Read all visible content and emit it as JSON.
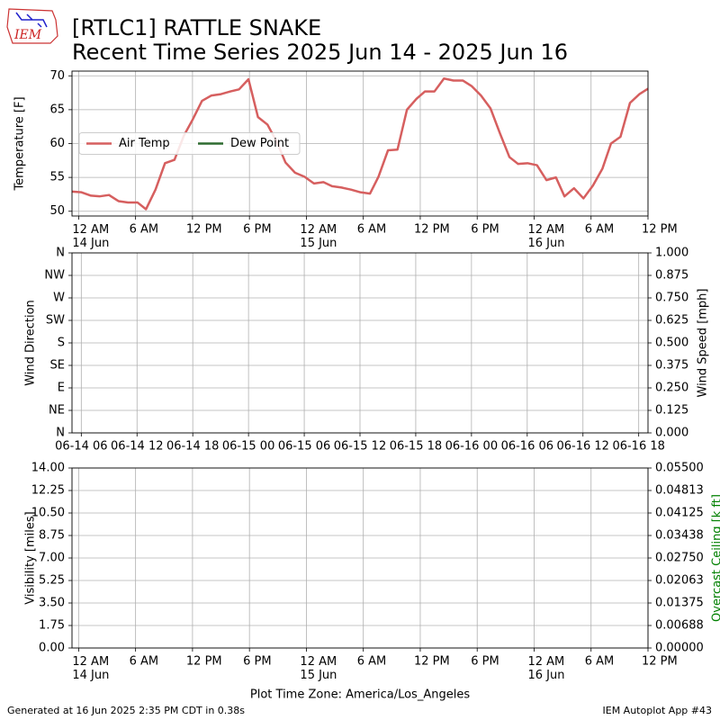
{
  "header": {
    "title": "[RTLC1] RATTLE SNAKE",
    "subtitle": "Recent Time Series 2025 Jun 14 - 2025 Jun 16",
    "logo": "IEM"
  },
  "footer": {
    "x_label": "Plot Time Zone: America/Los_Angeles",
    "generated": "Generated at 16 Jun 2025 2:35 PM CDT in 0.38s",
    "app": "IEM Autoplot App #43"
  },
  "chart_data": [
    {
      "type": "line",
      "y_label": "Temperature [F]",
      "x": [
        -0.7,
        0.3,
        1.3,
        2.2,
        3.2,
        4.2,
        5.2,
        6.2,
        7.1,
        8.1,
        9.1,
        10.1,
        11.1,
        12.0,
        13.0,
        14.0,
        15.0,
        16.0,
        16.9,
        17.9,
        18.9,
        19.9,
        20.9,
        21.8,
        22.8,
        23.8,
        24.8,
        25.8,
        26.7,
        27.7,
        28.7,
        29.7,
        30.7,
        31.6,
        32.6,
        33.6,
        34.6,
        35.6,
        36.5,
        37.5,
        38.5,
        39.5,
        40.5,
        41.4,
        42.4,
        43.4,
        44.4,
        45.4,
        46.3,
        47.3,
        48.3,
        49.3,
        50.3,
        51.2,
        52.2,
        53.2,
        54.2,
        55.2,
        56.1,
        57.1,
        58.1,
        59.1,
        60.0
      ],
      "series": [
        {
          "name": "Air Temp",
          "color": "#d65f5f",
          "values": [
            52.9,
            52.8,
            52.3,
            52.2,
            52.4,
            51.5,
            51.3,
            51.3,
            50.3,
            53.2,
            57.1,
            57.6,
            61.2,
            63.5,
            66.3,
            67.1,
            67.3,
            67.7,
            68.0,
            69.5,
            63.9,
            62.8,
            60.2,
            57.2,
            55.7,
            55.1,
            54.1,
            54.3,
            53.7,
            53.5,
            53.2,
            52.8,
            52.6,
            55.1,
            59.0,
            59.1,
            65.0,
            66.6,
            67.7,
            67.7,
            69.6,
            69.3,
            69.3,
            68.5,
            67.1,
            65.2,
            61.5,
            58.0,
            57.0,
            57.1,
            56.8,
            54.6,
            55.0,
            52.2,
            53.4,
            51.9,
            53.8,
            56.3,
            60.0,
            61.0,
            66.0,
            67.3,
            68.1
          ]
        },
        {
          "name": "Dew Point",
          "color": "#2e6b30",
          "values": [
            null,
            null,
            null,
            null,
            null,
            null,
            null,
            null,
            null,
            null,
            null,
            null,
            null,
            null,
            null,
            null,
            null,
            null,
            null,
            null,
            null,
            null,
            null,
            null,
            null,
            null,
            null,
            null,
            null,
            null,
            null,
            null,
            null,
            null,
            null,
            null,
            null,
            null,
            null,
            null,
            null,
            null,
            null,
            null,
            null,
            null,
            null,
            null,
            null,
            null,
            null,
            null,
            null,
            null,
            null,
            null,
            null,
            null,
            null,
            null,
            null,
            null,
            null
          ]
        }
      ],
      "xlim": [
        -0.7,
        60
      ],
      "xticks": [
        {
          "value": 0,
          "label": "12 AM\n14 Jun"
        },
        {
          "value": 6,
          "label": "6 AM"
        },
        {
          "value": 12,
          "label": "12 PM"
        },
        {
          "value": 18,
          "label": "6 PM"
        },
        {
          "value": 24,
          "label": "12 AM\n15 Jun"
        },
        {
          "value": 30,
          "label": "6 AM"
        },
        {
          "value": 36,
          "label": "12 PM"
        },
        {
          "value": 42,
          "label": "6 PM"
        },
        {
          "value": 48,
          "label": "12 AM\n16 Jun"
        },
        {
          "value": 54,
          "label": "6 AM"
        },
        {
          "value": 60,
          "label": "12 PM"
        }
      ],
      "ylim": [
        49.3,
        70.7
      ],
      "yticks": [
        50,
        55,
        60,
        65,
        70
      ],
      "grid": true,
      "legend": "center left"
    },
    {
      "type": "line",
      "y_label": "Wind Direction",
      "y2_label": "Wind Speed [mph]",
      "xlim": [
        5,
        67
      ],
      "xticks": [
        {
          "value": 6,
          "label": "06-14 06"
        },
        {
          "value": 12,
          "label": "06-14 12"
        },
        {
          "value": 18,
          "label": "06-14 18"
        },
        {
          "value": 24,
          "label": "06-15 00"
        },
        {
          "value": 30,
          "label": "06-15 06"
        },
        {
          "value": 36,
          "label": "06-15 12"
        },
        {
          "value": 42,
          "label": "06-15 18"
        },
        {
          "value": 48,
          "label": "06-16 00"
        },
        {
          "value": 54,
          "label": "06-16 06"
        },
        {
          "value": 60,
          "label": "06-16 12"
        },
        {
          "value": 66,
          "label": "06-16 18"
        }
      ],
      "ylim": [
        0,
        360
      ],
      "yticks": [
        {
          "value": 0,
          "label": "N"
        },
        {
          "value": 45,
          "label": "NE"
        },
        {
          "value": 90,
          "label": "E"
        },
        {
          "value": 135,
          "label": "SE"
        },
        {
          "value": 180,
          "label": "S"
        },
        {
          "value": 225,
          "label": "SW"
        },
        {
          "value": 270,
          "label": "W"
        },
        {
          "value": 315,
          "label": "NW"
        },
        {
          "value": 360,
          "label": "N"
        }
      ],
      "y2lim": [
        0,
        1
      ],
      "y2ticks": [
        {
          "value": 0,
          "label": "0.000"
        },
        0.125,
        {
          "value": 0.25,
          "label": "0.250"
        },
        0.375,
        {
          "value": 0.5,
          "label": "0.500"
        },
        0.625,
        {
          "value": 0.75,
          "label": "0.750"
        },
        0.875,
        {
          "value": 1,
          "label": "1.000"
        }
      ],
      "grid": true
    },
    {
      "type": "line",
      "y_label": "Visibility [miles]",
      "y2_label": "Overcast Ceiling [k ft]",
      "y2_label_color": "#008000",
      "xlim": [
        -0.7,
        60
      ],
      "xticks": [
        {
          "value": 0,
          "label": "12 AM\n14 Jun"
        },
        {
          "value": 6,
          "label": "6 AM"
        },
        {
          "value": 12,
          "label": "12 PM"
        },
        {
          "value": 18,
          "label": "6 PM"
        },
        {
          "value": 24,
          "label": "12 AM\n15 Jun"
        },
        {
          "value": 30,
          "label": "6 AM"
        },
        {
          "value": 36,
          "label": "12 PM"
        },
        {
          "value": 42,
          "label": "6 PM"
        },
        {
          "value": 48,
          "label": "12 AM\n16 Jun"
        },
        {
          "value": 54,
          "label": "6 AM"
        },
        {
          "value": 60,
          "label": "12 PM"
        }
      ],
      "ylim": [
        0,
        14
      ],
      "yticks": [
        {
          "value": 0,
          "label": "0.00"
        },
        1.75,
        {
          "value": 3.5,
          "label": "3.50"
        },
        5.25,
        {
          "value": 7,
          "label": "7.00"
        },
        8.75,
        {
          "value": 10.5,
          "label": "10.50"
        },
        12.25,
        {
          "value": 14,
          "label": "14.00"
        }
      ],
      "y2lim": [
        0,
        0.055
      ],
      "y2ticks": [
        {
          "value": 0,
          "label": "0.00000"
        },
        {
          "value": 0.006875,
          "label": "0.00688"
        },
        0.01375,
        {
          "value": 0.020625,
          "label": "0.02063"
        },
        {
          "value": 0.0275,
          "label": "0.02750"
        },
        {
          "value": 0.034375,
          "label": "0.03438"
        },
        0.04125,
        {
          "value": 0.048125,
          "label": "0.04813"
        },
        {
          "value": 0.055,
          "label": "0.05500"
        }
      ],
      "grid": true
    }
  ]
}
